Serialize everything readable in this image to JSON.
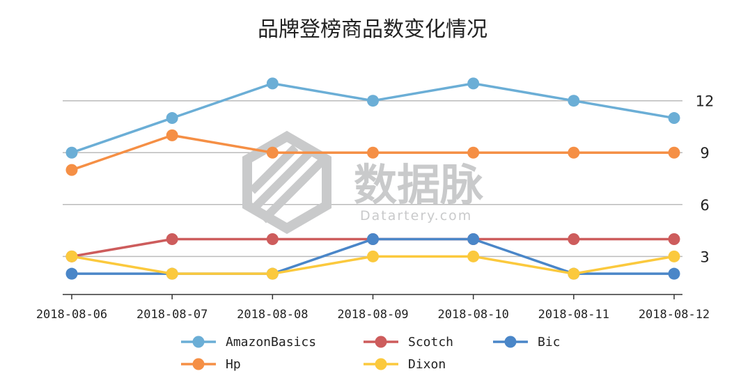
{
  "watermark": {
    "text": "数据脉",
    "subtext": "Datartery.com"
  },
  "chart_data": {
    "type": "line",
    "title": "品牌登榜商品数变化情况",
    "xlabel": "",
    "ylabel": "",
    "categories": [
      "2018-08-06",
      "2018-08-07",
      "2018-08-08",
      "2018-08-09",
      "2018-08-10",
      "2018-08-11",
      "2018-08-12"
    ],
    "ylim": [
      0.8,
      14
    ],
    "yticks": [
      3,
      6,
      9,
      12
    ],
    "y_axis_position": "right",
    "grid": "horizontal",
    "legend_position": "bottom",
    "series": [
      {
        "name": "AmazonBasics",
        "color": "#6baed6",
        "values": [
          9,
          11,
          13,
          12,
          13,
          12,
          11
        ]
      },
      {
        "name": "Scotch",
        "color": "#cd5c5c",
        "values": [
          3,
          4,
          4,
          4,
          4,
          4,
          4
        ]
      },
      {
        "name": "Bic",
        "color": "#4a86c8",
        "values": [
          2,
          2,
          2,
          4,
          4,
          2,
          2
        ]
      },
      {
        "name": "Hp",
        "color": "#f58f45",
        "values": [
          8,
          10,
          9,
          9,
          9,
          9,
          9
        ]
      },
      {
        "name": "Dixon",
        "color": "#fbc93d",
        "values": [
          3,
          2,
          2,
          3,
          3,
          2,
          3
        ]
      }
    ]
  }
}
